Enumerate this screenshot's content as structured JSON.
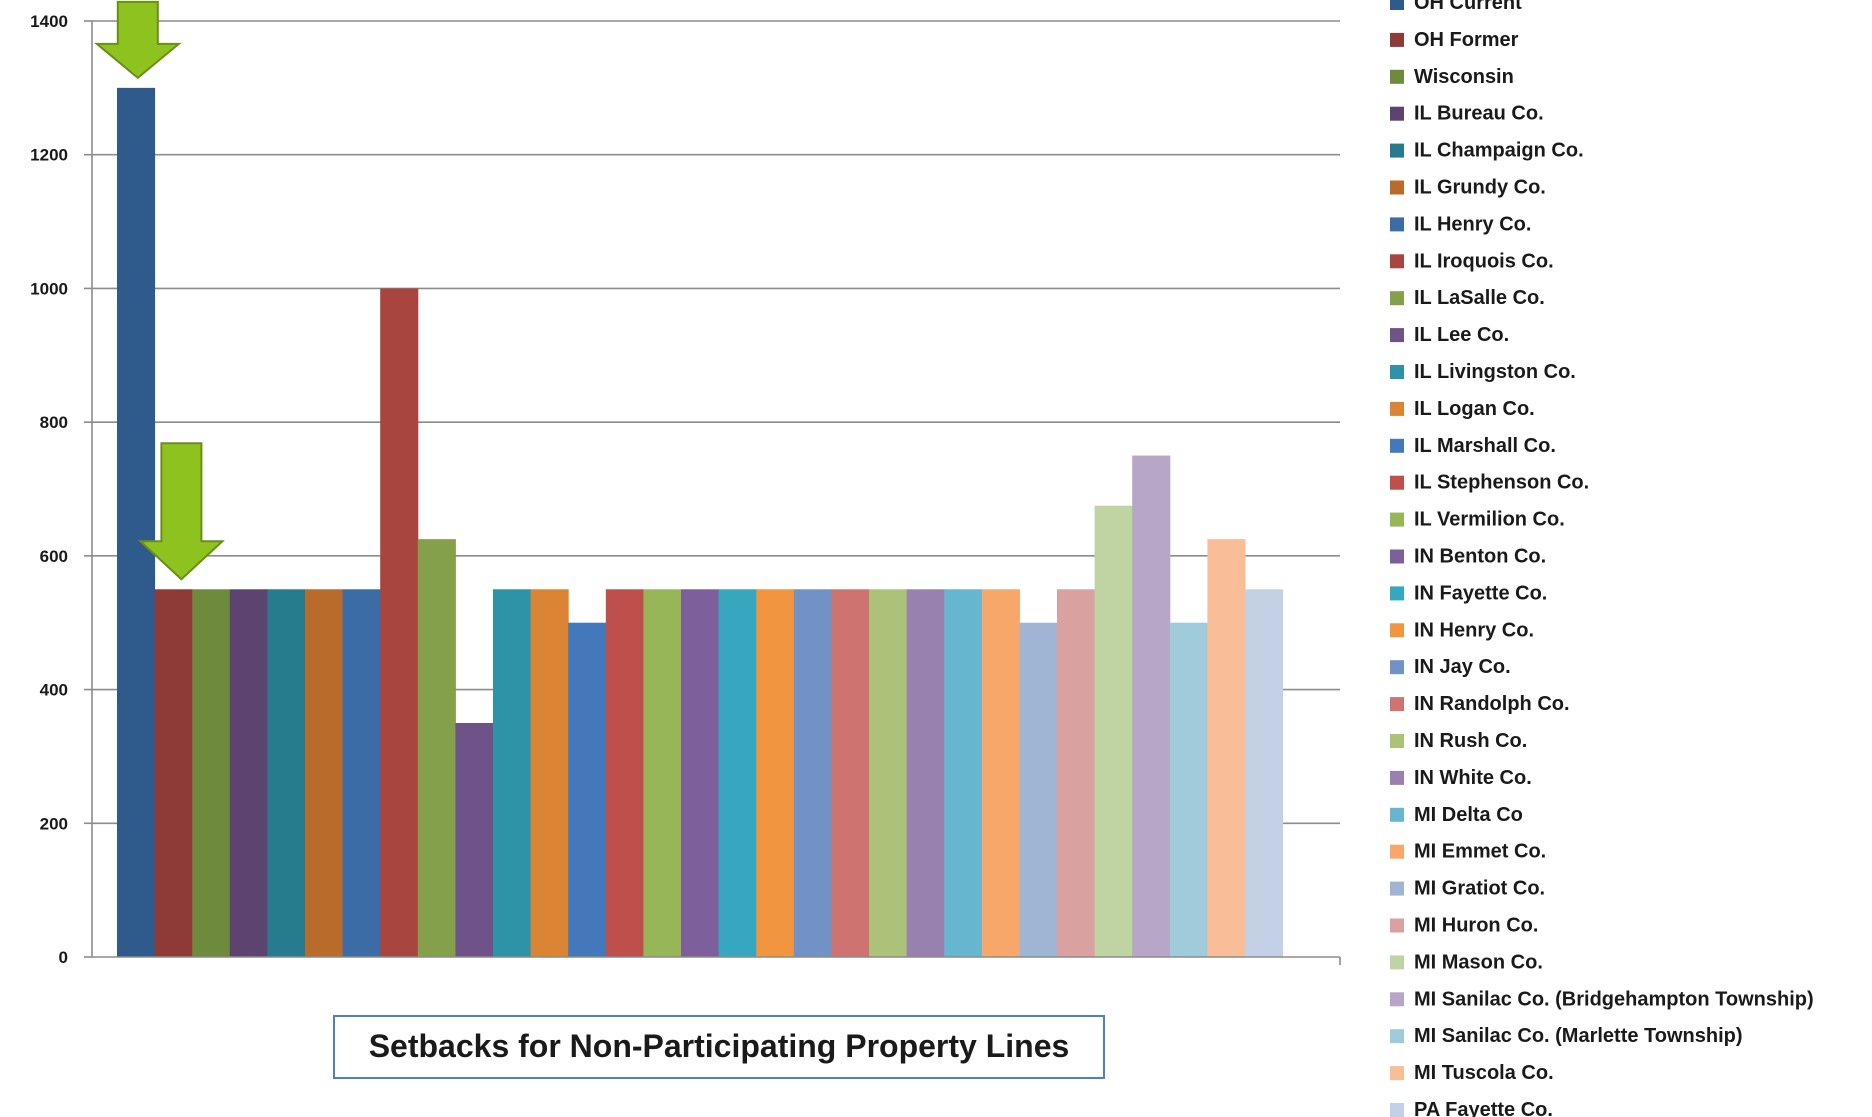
{
  "chart_data": {
    "type": "bar",
    "title": "Setbacks for Non-Participating Property Lines",
    "xlabel": "",
    "ylabel": "",
    "ylim": [
      0,
      1400
    ],
    "yticks": [
      0,
      200,
      400,
      600,
      800,
      1000,
      1200,
      1400
    ],
    "grid": true,
    "legend_position": "right",
    "series": [
      {
        "name": "OH Current",
        "value": 1300,
        "color": "#2f5b8c"
      },
      {
        "name": "OH Former",
        "value": 550,
        "color": "#8e3b37"
      },
      {
        "name": "Wisconsin",
        "value": 550,
        "color": "#6e8a3c"
      },
      {
        "name": "IL Bureau Co.",
        "value": 550,
        "color": "#5c4370"
      },
      {
        "name": "IL Champaign Co.",
        "value": 550,
        "color": "#267c8c"
      },
      {
        "name": "IL Grundy Co.",
        "value": 550,
        "color": "#b86b2a"
      },
      {
        "name": "IL Henry Co.",
        "value": 550,
        "color": "#3b6ca6"
      },
      {
        "name": "IL Iroquois Co.",
        "value": 1000,
        "color": "#a8453f"
      },
      {
        "name": "IL LaSalle Co.",
        "value": 625,
        "color": "#85a04b"
      },
      {
        "name": "IL Lee Co.",
        "value": 350,
        "color": "#6e5288"
      },
      {
        "name": "IL Livingston Co.",
        "value": 550,
        "color": "#2f93a8"
      },
      {
        "name": "IL Logan Co.",
        "value": 550,
        "color": "#db8434"
      },
      {
        "name": "IL Marshall Co.",
        "value": 500,
        "color": "#4379bb"
      },
      {
        "name": "IL Stephenson Co.",
        "value": 550,
        "color": "#bf4f4a"
      },
      {
        "name": "IL Vermilion Co.",
        "value": 550,
        "color": "#97b658"
      },
      {
        "name": "IN Benton Co.",
        "value": 550,
        "color": "#7d5f9b"
      },
      {
        "name": "IN Fayette Co.",
        "value": 550,
        "color": "#37a7bf"
      },
      {
        "name": "IN Henry Co.",
        "value": 550,
        "color": "#f1953f"
      },
      {
        "name": "IN Jay Co.",
        "value": 550,
        "color": "#7092c4"
      },
      {
        "name": "IN Randolph Co.",
        "value": 550,
        "color": "#cf7370"
      },
      {
        "name": "IN Rush Co.",
        "value": 550,
        "color": "#abc278"
      },
      {
        "name": "IN White Co.",
        "value": 550,
        "color": "#9881ae"
      },
      {
        "name": "MI Delta Co",
        "value": 550,
        "color": "#66b6cf"
      },
      {
        "name": "MI Emmet Co.",
        "value": 550,
        "color": "#f8a76b"
      },
      {
        "name": "MI Gratiot Co.",
        "value": 500,
        "color": "#a0b4d4"
      },
      {
        "name": "MI Huron Co.",
        "value": 550,
        "color": "#d9a19f"
      },
      {
        "name": "MI Mason Co.",
        "value": 675,
        "color": "#c0d3a2"
      },
      {
        "name": "MI Sanilac Co. (Bridgehampton Township)",
        "value": 750,
        "color": "#b7a6c6"
      },
      {
        "name": "MI Sanilac Co. (Marlette Township)",
        "value": 500,
        "color": "#9fcbdb"
      },
      {
        "name": "MI Tuscola Co.",
        "value": 625,
        "color": "#f9be98"
      },
      {
        "name": "PA Fayette Co.",
        "value": 550,
        "color": "#c4d0e6"
      }
    ],
    "annotations": [
      {
        "type": "arrow",
        "points_to": "OH Current",
        "color": "#8dc21f"
      },
      {
        "type": "arrow",
        "points_to": "OH Former",
        "color": "#8dc21f"
      }
    ]
  }
}
